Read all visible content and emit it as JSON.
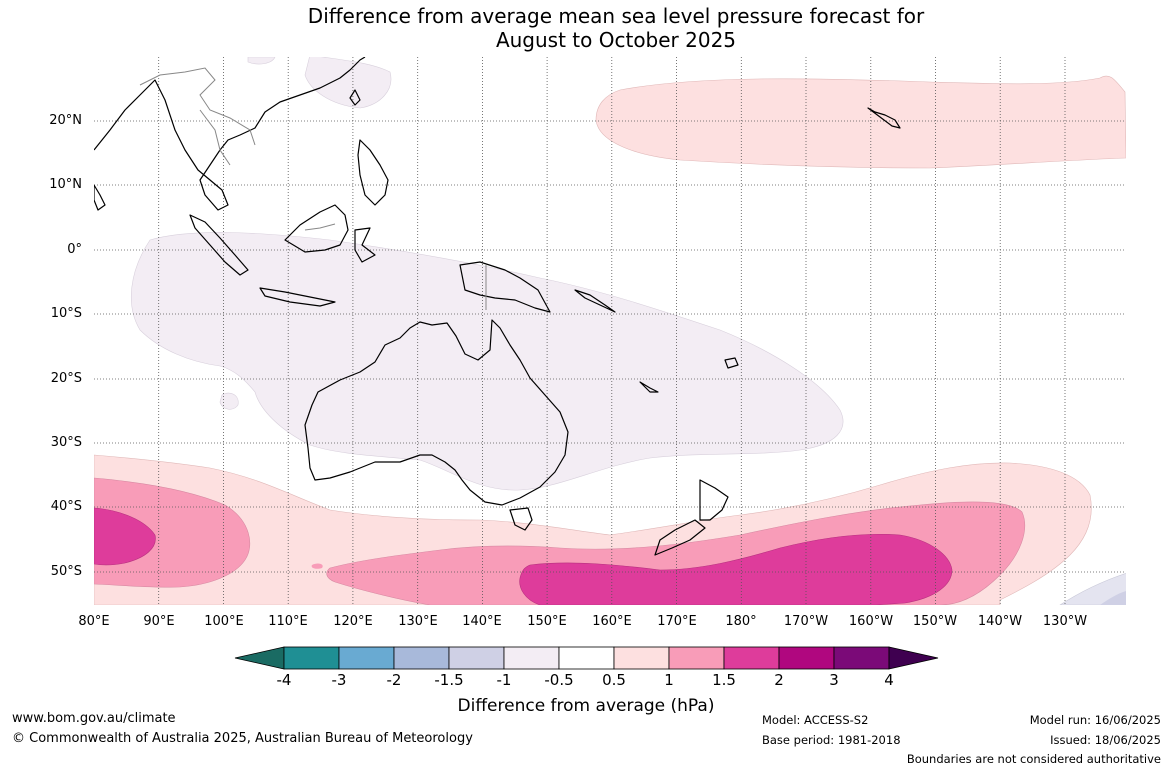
{
  "title_line1": "Difference from average mean sea level pressure forecast for",
  "title_line2": "August to October 2025",
  "lat_labels": [
    "20°N",
    "10°N",
    "0°",
    "10°S",
    "20°S",
    "30°S",
    "40°S",
    "50°S"
  ],
  "lon_labels": [
    "80°E",
    "90°E",
    "100°E",
    "110°E",
    "120°E",
    "130°E",
    "140°E",
    "150°E",
    "160°E",
    "170°E",
    "180°",
    "170°W",
    "160°W",
    "150°W",
    "140°W",
    "130°W"
  ],
  "colorbar": {
    "labels": [
      "-4",
      "-3",
      "-2",
      "-1.5",
      "-1",
      "-0.5",
      "0.5",
      "1",
      "1.5",
      "2",
      "3",
      "4"
    ],
    "colors": [
      "#1a6b63",
      "#1f8f94",
      "#69aad2",
      "#a8b9da",
      "#cfd0e5",
      "#f3edf4",
      "#ffffff",
      "#fde0e0",
      "#f89cb8",
      "#de3c9b",
      "#b0077f",
      "#7b0a78",
      "#3f0050"
    ],
    "title": "Difference from average (hPa)"
  },
  "footer": {
    "url": "www.bom.gov.au/climate",
    "copyright": "© Commonwealth of Australia 2025, Australian Bureau of Meteorology",
    "model": "Model: ACCESS-S2",
    "base_period": "Base period: 1981-2018",
    "model_run": "Model run: 16/06/2025",
    "issued": "Issued: 18/06/2025",
    "disclaimer": "Boundaries are not considered authoritative"
  }
}
